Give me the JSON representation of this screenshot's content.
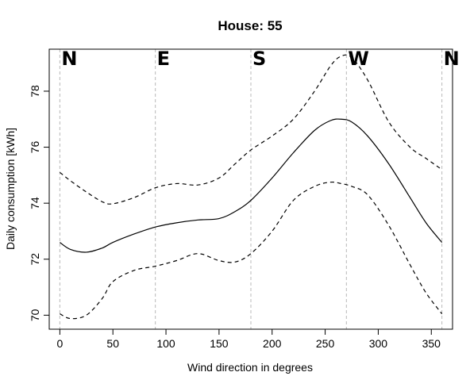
{
  "chart_data": {
    "type": "line",
    "title": "House:  55",
    "xlabel": "Wind direction in degrees",
    "ylabel": "Daily consumption [kWh]",
    "xlim": [
      -10,
      370
    ],
    "ylim": [
      69.5,
      79.5
    ],
    "x_ticks": [
      0,
      50,
      100,
      150,
      200,
      250,
      300,
      350
    ],
    "y_ticks": [
      70,
      72,
      74,
      76,
      78
    ],
    "direction_markers": [
      {
        "label": "N",
        "x": 0
      },
      {
        "label": "E",
        "x": 90
      },
      {
        "label": "S",
        "x": 180
      },
      {
        "label": "W",
        "x": 270
      },
      {
        "label": "N",
        "x": 360
      }
    ],
    "x": [
      0,
      10,
      25,
      40,
      50,
      70,
      90,
      110,
      130,
      150,
      165,
      180,
      200,
      220,
      240,
      255,
      265,
      275,
      290,
      310,
      330,
      345,
      360
    ],
    "series": [
      {
        "style": "solid",
        "values": [
          72.6,
          72.35,
          72.25,
          72.4,
          72.6,
          72.9,
          73.15,
          73.3,
          73.4,
          73.45,
          73.7,
          74.1,
          74.9,
          75.8,
          76.6,
          76.95,
          77.0,
          76.9,
          76.4,
          75.4,
          74.2,
          73.3,
          72.6
        ]
      },
      {
        "style": "dashed",
        "values": [
          75.1,
          74.8,
          74.4,
          74.05,
          73.98,
          74.2,
          74.55,
          74.7,
          74.65,
          74.9,
          75.4,
          75.9,
          76.4,
          77.0,
          78.0,
          78.9,
          79.25,
          79.2,
          78.4,
          76.9,
          76.0,
          75.6,
          75.2
        ]
      },
      {
        "style": "dashed",
        "values": [
          70.05,
          69.88,
          70.0,
          70.6,
          71.2,
          71.6,
          71.75,
          71.95,
          72.2,
          71.95,
          71.9,
          72.2,
          73.0,
          74.1,
          74.6,
          74.75,
          74.7,
          74.6,
          74.3,
          73.2,
          71.8,
          70.8,
          70.05
        ]
      }
    ]
  }
}
